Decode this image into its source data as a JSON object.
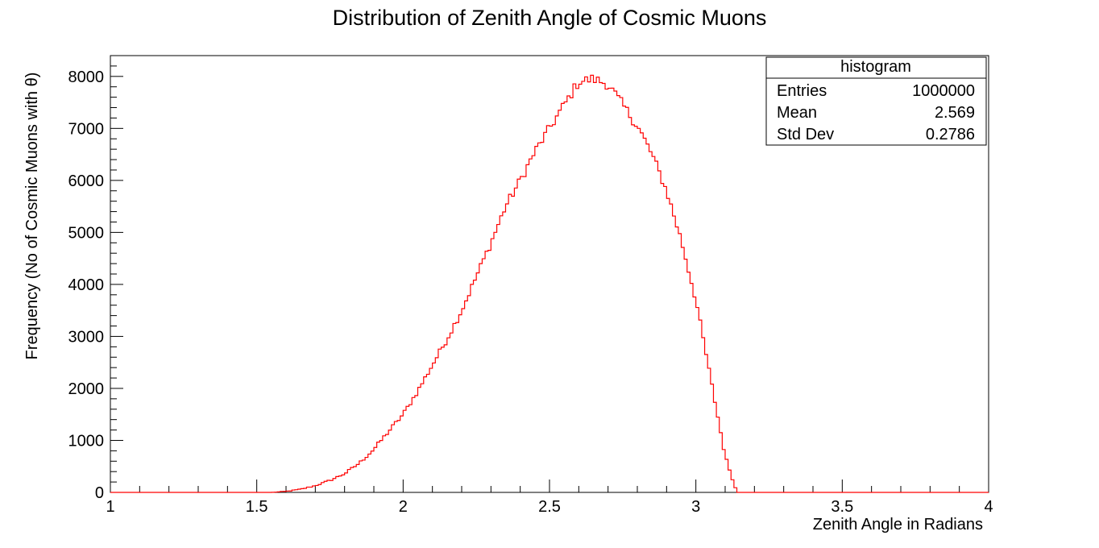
{
  "chart_data": {
    "type": "histogram",
    "title": "Distribution of Zenith Angle of Cosmic Muons",
    "xlabel": "Zenith Angle in Radians",
    "ylabel": "Frequency (No of Cosmic Muons with θ)",
    "xlim": [
      1,
      4
    ],
    "ylim": [
      0,
      8400
    ],
    "x_ticks": [
      "1",
      "1.5",
      "2",
      "2.5",
      "3",
      "3.5",
      "4"
    ],
    "y_ticks": [
      "0",
      "1000",
      "2000",
      "3000",
      "4000",
      "5000",
      "6000",
      "7000",
      "8000"
    ],
    "line_color": "#ff0000",
    "series": [
      {
        "bin_width": 0.01,
        "x": [
          1.55,
          1.6,
          1.65,
          1.7,
          1.75,
          1.8,
          1.85,
          1.9,
          1.95,
          2.0,
          2.05,
          2.1,
          2.15,
          2.2,
          2.25,
          2.3,
          2.35,
          2.4,
          2.45,
          2.5,
          2.55,
          2.6,
          2.65,
          2.7,
          2.75,
          2.8,
          2.85,
          2.9,
          2.95,
          3.0,
          3.05,
          3.1,
          3.14
        ],
        "values": [
          0,
          20,
          60,
          130,
          230,
          360,
          560,
          830,
          1170,
          1500,
          1950,
          2450,
          2950,
          3500,
          4150,
          4800,
          5500,
          6000,
          6550,
          7000,
          7450,
          7900,
          7950,
          7850,
          7450,
          7050,
          6500,
          5800,
          4850,
          3700,
          2200,
          700,
          0
        ]
      }
    ],
    "stats_box": {
      "title": "histogram",
      "rows": [
        {
          "label": "Entries",
          "value": "1000000"
        },
        {
          "label": "Mean",
          "value": "2.569"
        },
        {
          "label": "Std Dev",
          "value": "0.2786"
        }
      ]
    },
    "grid": false,
    "legend": "top-right"
  }
}
